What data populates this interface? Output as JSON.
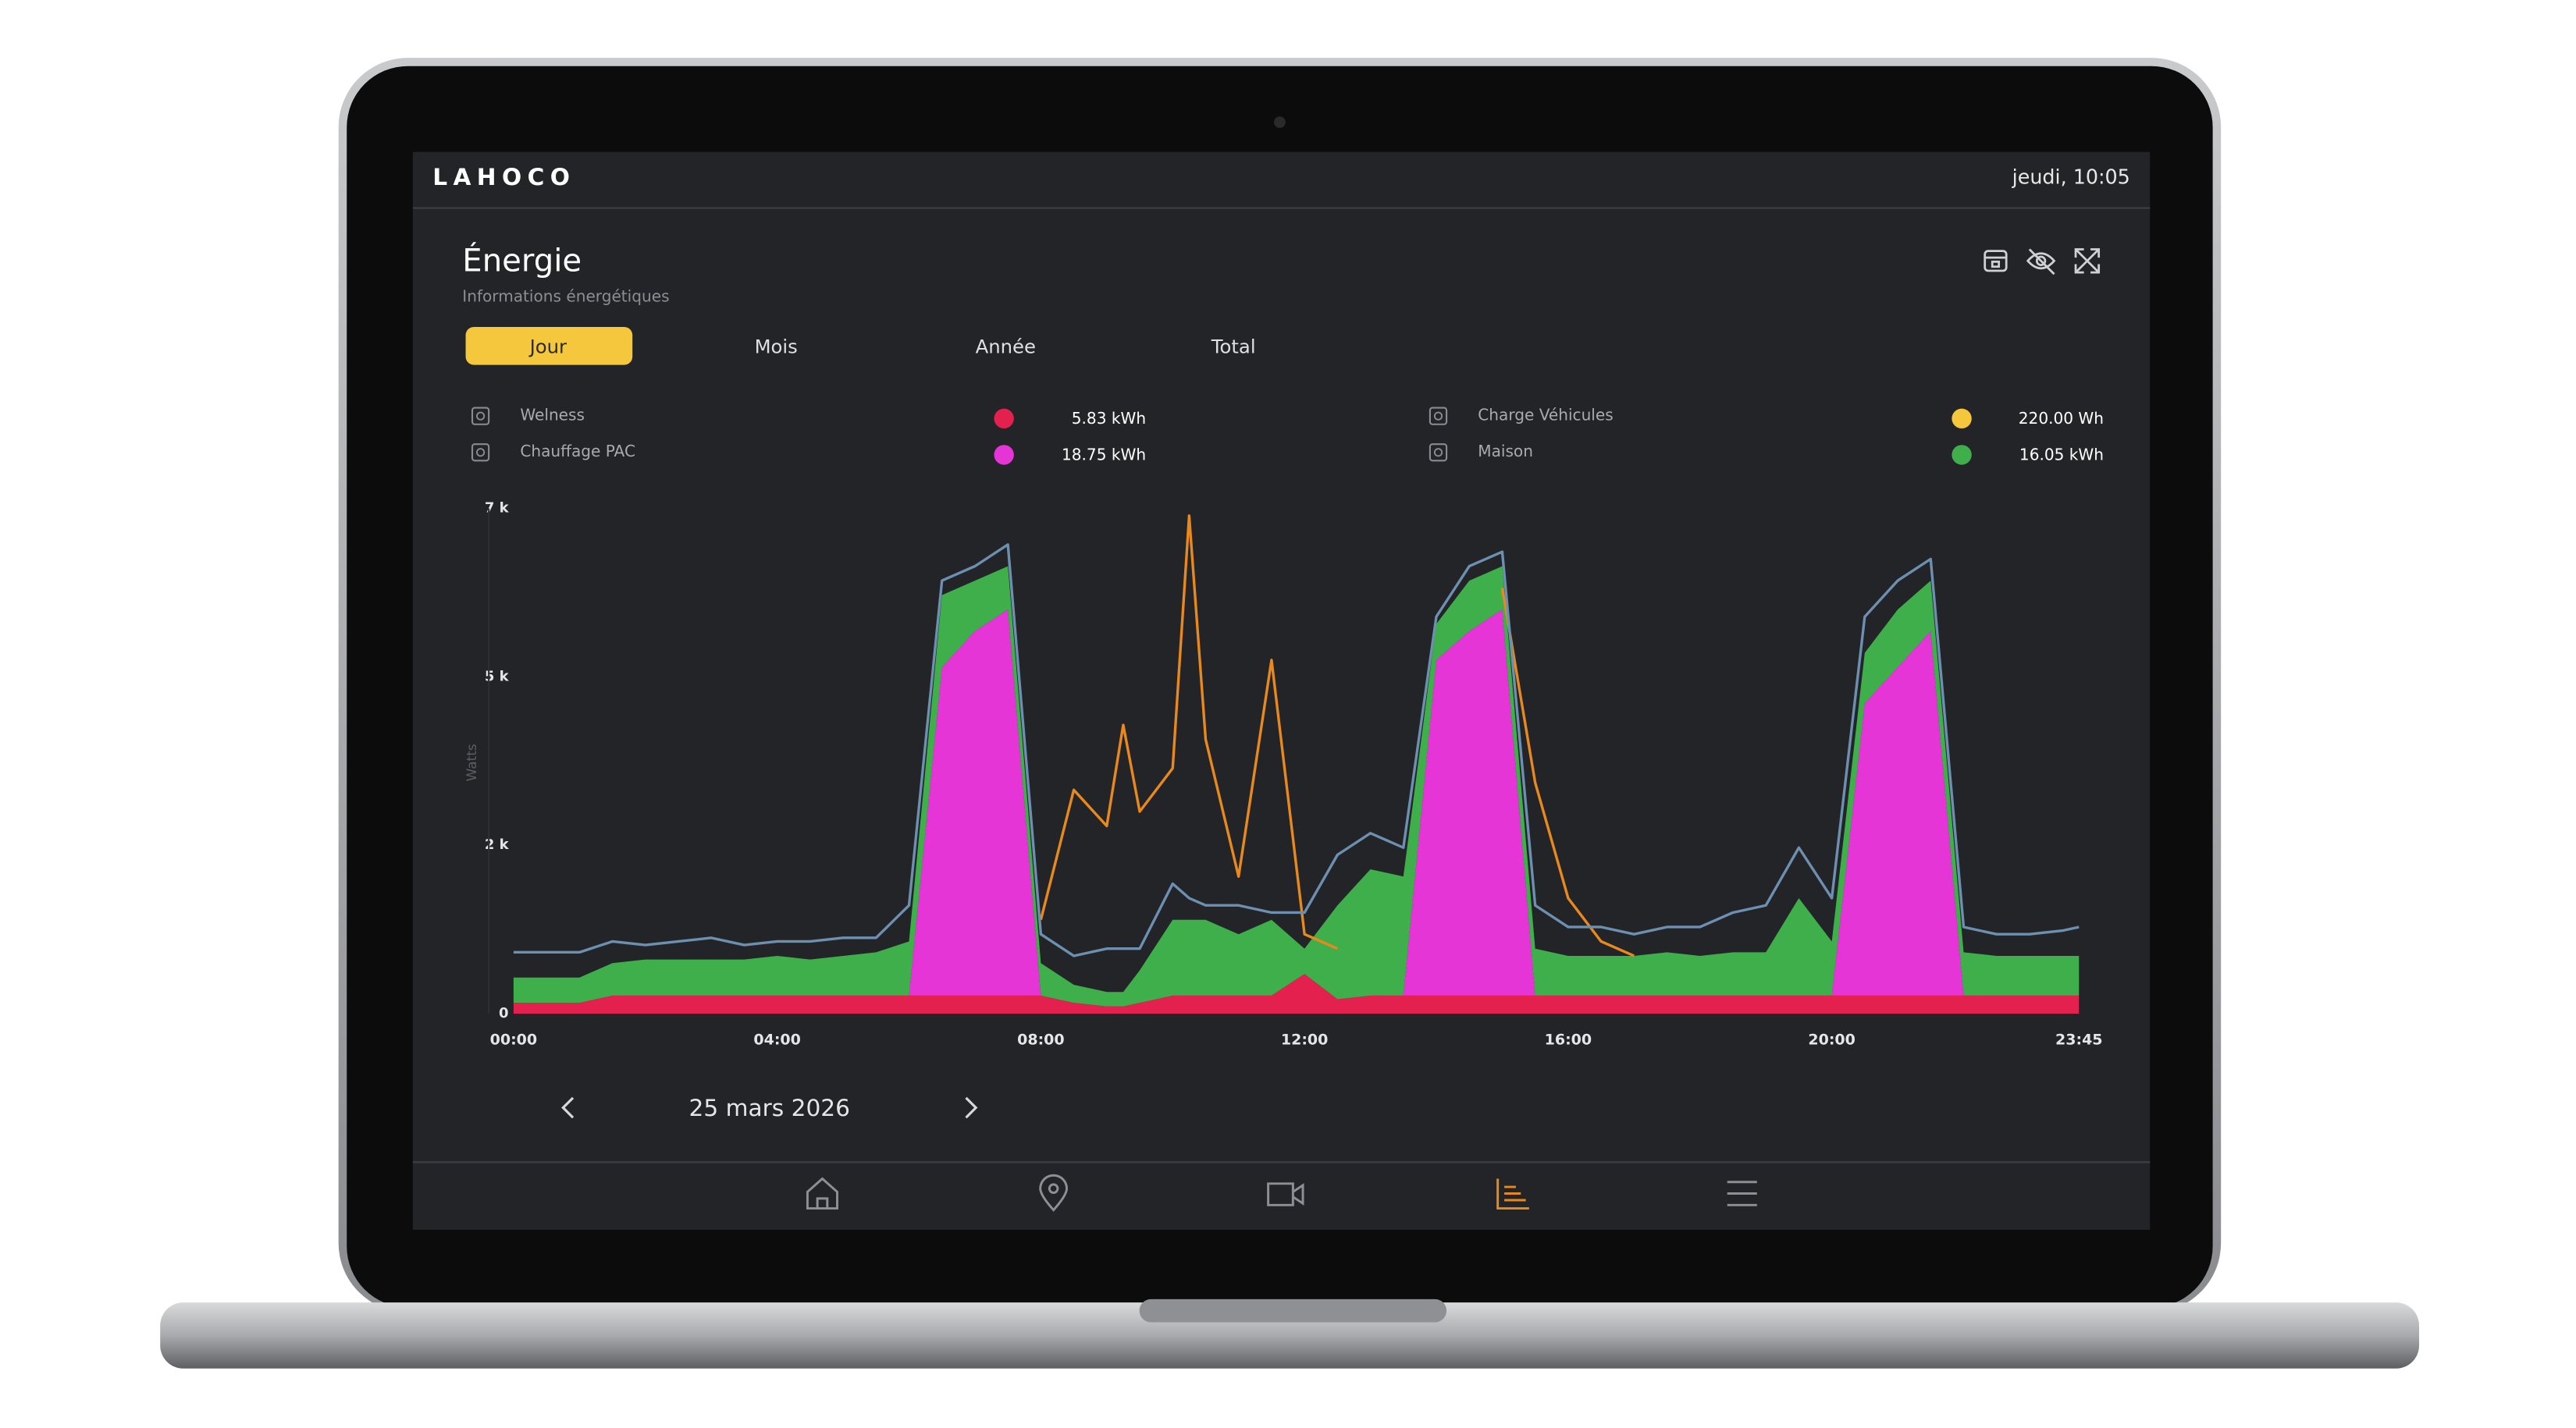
{
  "header": {
    "brand": "LAHOCO",
    "datetime": "jeudi, 10:05"
  },
  "panel": {
    "title": "Énergie",
    "subtitle": "Informations énergétiques",
    "tabs": [
      "Jour",
      "Mois",
      "Année",
      "Total"
    ],
    "active_tab": 0,
    "date": "25 mars 2026"
  },
  "chart_data": {
    "type": "area",
    "y_label": "Watts",
    "x": [
      0,
      0.5,
      1,
      1.5,
      2,
      2.5,
      3,
      3.5,
      4,
      4.5,
      5,
      5.5,
      6,
      6.5,
      7,
      7.5,
      8,
      8.5,
      9,
      9.25,
      9.5,
      10,
      10.25,
      10.5,
      11,
      11.5,
      12,
      12.5,
      13,
      13.5,
      14,
      14.5,
      15,
      15.5,
      16,
      16.5,
      17,
      17.5,
      18,
      18.5,
      19,
      19.5,
      20,
      20.5,
      21,
      21.5,
      22,
      22.5,
      23,
      23.5,
      23.75
    ],
    "xlim": [
      0,
      23.75
    ],
    "xticks": [
      {
        "value": 0,
        "label": "00:00"
      },
      {
        "value": 4,
        "label": "04:00"
      },
      {
        "value": 8,
        "label": "08:00"
      },
      {
        "value": 12,
        "label": "12:00"
      },
      {
        "value": 16,
        "label": "16:00"
      },
      {
        "value": 20,
        "label": "20:00"
      },
      {
        "value": 23.75,
        "label": "23:45"
      }
    ],
    "ylim": [
      0,
      7000
    ],
    "yticks": [
      0,
      {
        "value": 2333,
        "label": "2 k"
      },
      {
        "value": 4667,
        "label": "5 k"
      },
      {
        "value": 7000,
        "label": "7 k"
      }
    ],
    "grid": false,
    "series": [
      {
        "name": "Welness",
        "total": "5.83 kWh",
        "color": "#e3204e",
        "stacked": true,
        "values": [
          150,
          150,
          150,
          250,
          250,
          250,
          250,
          250,
          250,
          250,
          250,
          250,
          250,
          250,
          250,
          250,
          250,
          150,
          100,
          100,
          150,
          250,
          250,
          250,
          250,
          250,
          550,
          200,
          250,
          250,
          250,
          250,
          250,
          250,
          250,
          250,
          250,
          250,
          250,
          250,
          250,
          250,
          250,
          250,
          250,
          250,
          250,
          250,
          250,
          250,
          250
        ]
      },
      {
        "name": "Chauffage PAC",
        "total": "18.75 kWh",
        "color": "#e535d6",
        "stacked": true,
        "values": [
          0,
          0,
          0,
          0,
          0,
          0,
          0,
          0,
          0,
          0,
          0,
          0,
          0,
          4550,
          5050,
          5350,
          0,
          0,
          0,
          0,
          0,
          0,
          0,
          0,
          0,
          0,
          0,
          0,
          0,
          0,
          4650,
          5050,
          5350,
          0,
          0,
          0,
          0,
          0,
          0,
          0,
          0,
          0,
          0,
          4050,
          4550,
          5050,
          0,
          0,
          0,
          0,
          0
        ]
      },
      {
        "name": "Charge Véhicules",
        "total": "220.00 Wh",
        "color": "#e8891e",
        "legend_color": "#f5c73d",
        "stacked": false,
        "values": [
          null,
          null,
          null,
          null,
          null,
          null,
          null,
          null,
          null,
          null,
          null,
          null,
          null,
          null,
          null,
          null,
          1300,
          3100,
          2600,
          4000,
          2800,
          3400,
          6900,
          3800,
          1900,
          4900,
          1100,
          900,
          null,
          null,
          null,
          null,
          5900,
          3200,
          1600,
          1000,
          800,
          null,
          null,
          null,
          null,
          null,
          null,
          null,
          null,
          null,
          null,
          null,
          null,
          null,
          null
        ]
      },
      {
        "name": "Maison",
        "total": "16.05 kWh",
        "color": "#3faf4c",
        "stacked": true,
        "values": [
          350,
          350,
          350,
          450,
          500,
          500,
          500,
          500,
          550,
          500,
          550,
          600,
          750,
          1000,
          700,
          600,
          450,
          250,
          200,
          200,
          450,
          1050,
          1050,
          1050,
          850,
          1050,
          350,
          1300,
          1750,
          1650,
          500,
          700,
          600,
          650,
          550,
          550,
          550,
          600,
          550,
          600,
          600,
          1350,
          750,
          700,
          800,
          700,
          600,
          550,
          550,
          550,
          550
        ]
      },
      {
        "color": "#6d8fb0",
        "stacked": false,
        "values": [
          850,
          850,
          850,
          1000,
          950,
          1000,
          1050,
          950,
          1000,
          1000,
          1050,
          1050,
          1500,
          6000,
          6200,
          6500,
          1100,
          800,
          900,
          900,
          900,
          1800,
          1600,
          1500,
          1500,
          1400,
          1400,
          2200,
          2500,
          2300,
          5500,
          6200,
          6400,
          1500,
          1200,
          1200,
          1100,
          1200,
          1200,
          1400,
          1500,
          2300,
          1600,
          5500,
          6000,
          6300,
          1200,
          1100,
          1100,
          1150,
          1200
        ]
      }
    ]
  }
}
